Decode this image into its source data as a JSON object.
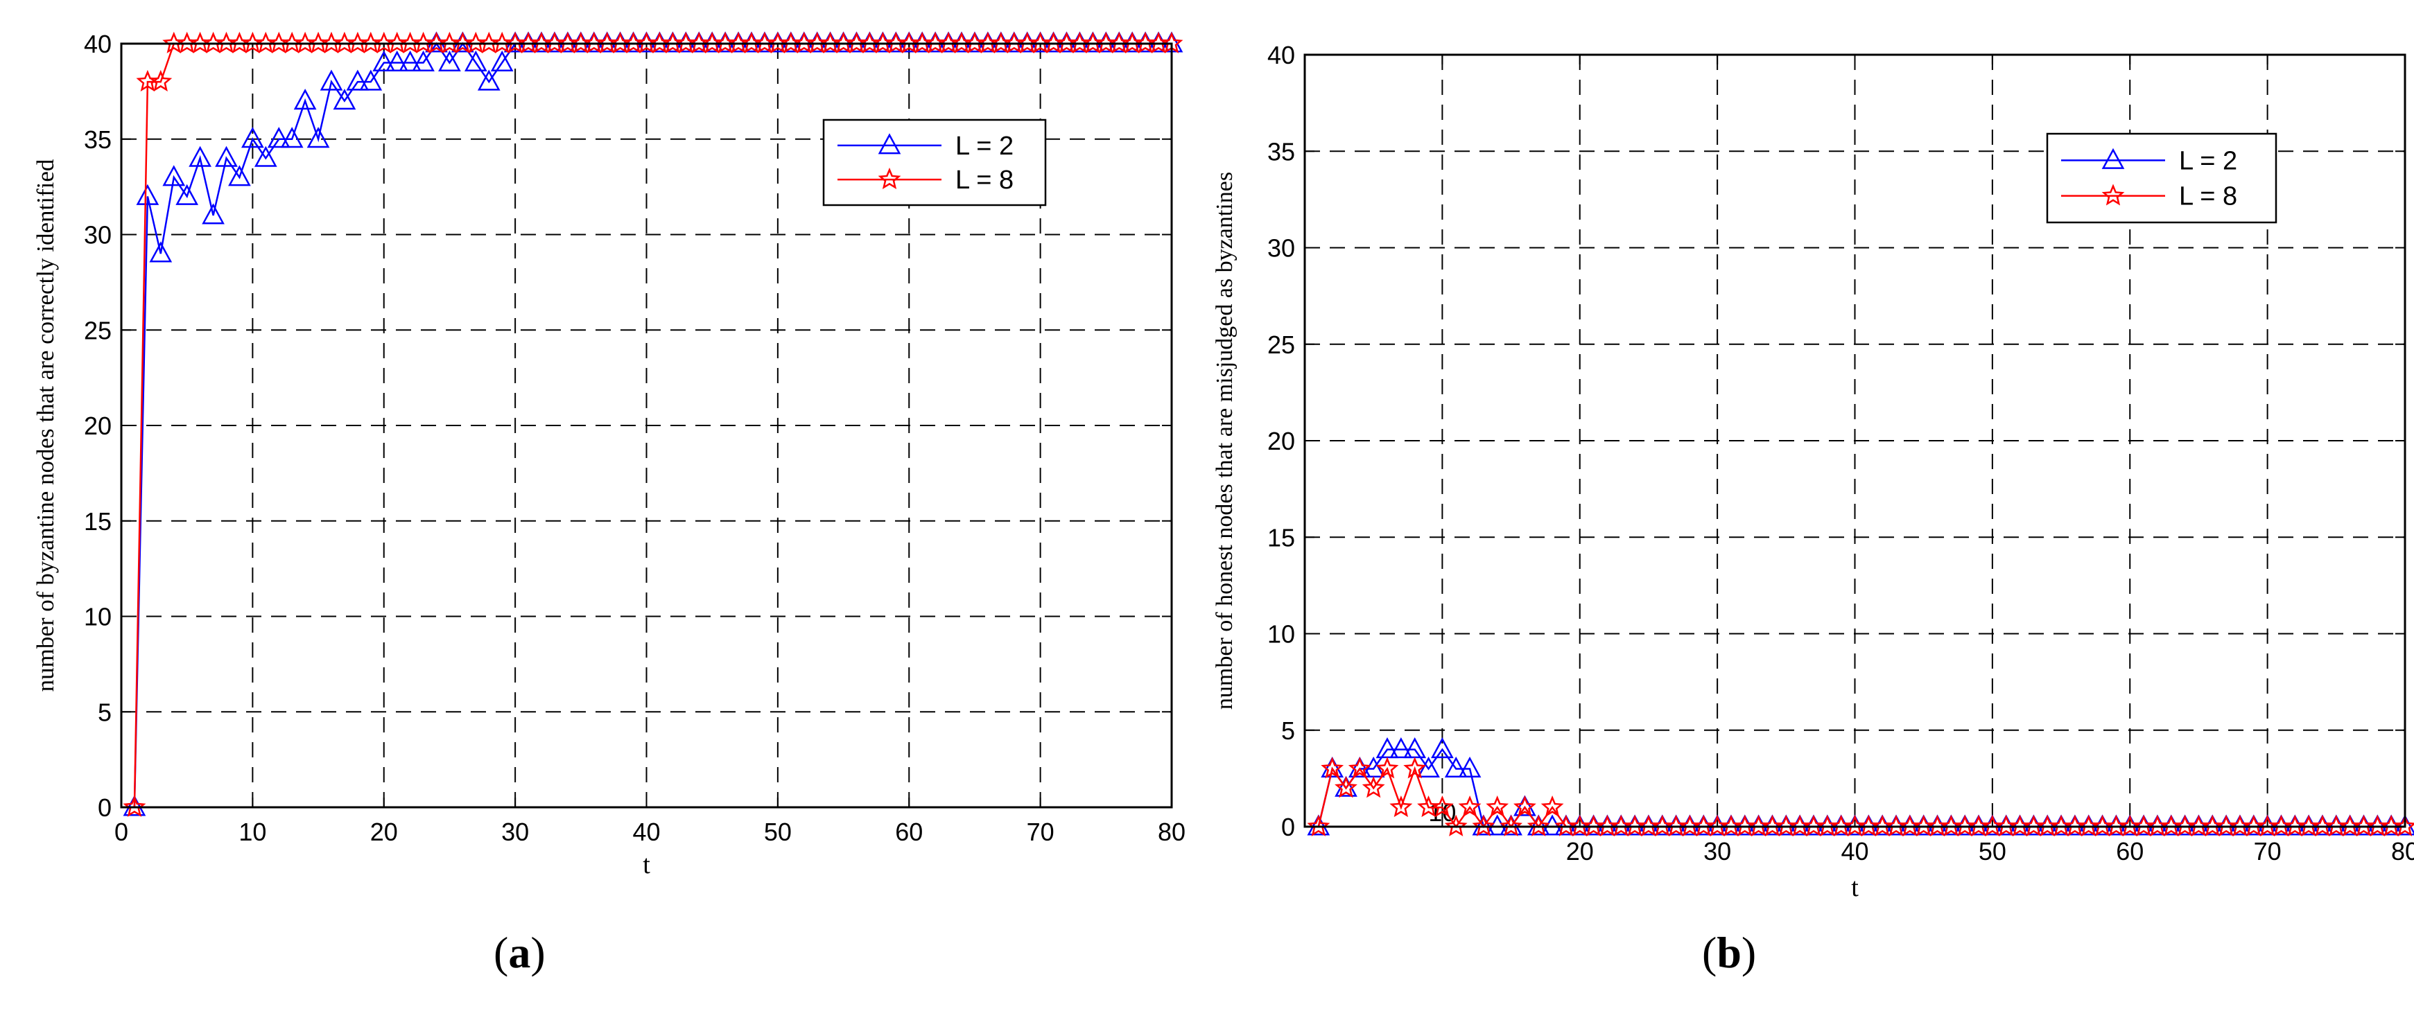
{
  "chart_data": [
    {
      "type": "line",
      "panel_label": "a",
      "xlabel": "t",
      "ylabel": "number of byzantine nodes that are correctly identified",
      "xlim": [
        0,
        80
      ],
      "ylim": [
        0,
        40
      ],
      "xticks": [
        0,
        10,
        20,
        30,
        40,
        50,
        60,
        70,
        80
      ],
      "yticks": [
        0,
        5,
        10,
        15,
        20,
        25,
        30,
        35,
        40
      ],
      "xtick_labels": [
        "0",
        "10",
        "20",
        "30",
        "40",
        "50",
        "60",
        "70",
        "80"
      ],
      "ytick_labels": [
        "0",
        "5",
        "10",
        "15",
        "20",
        "25",
        "30",
        "35",
        "40"
      ],
      "grid": true,
      "legend_position": "top-right",
      "series": [
        {
          "name": "L = 2",
          "color": "#0000ff",
          "marker": "triangle",
          "x": [
            1,
            2,
            3,
            4,
            5,
            6,
            7,
            8,
            9,
            10,
            11,
            12,
            13,
            14,
            15,
            16,
            17,
            18,
            19,
            20,
            21,
            22,
            23,
            24,
            25,
            26,
            27,
            28,
            29,
            30,
            31,
            32,
            33,
            34,
            35,
            36,
            37,
            38,
            39,
            40,
            41,
            42,
            43,
            44,
            45,
            46,
            47,
            48,
            49,
            50,
            51,
            52,
            53,
            54,
            55,
            56,
            57,
            58,
            59,
            60,
            61,
            62,
            63,
            64,
            65,
            66,
            67,
            68,
            69,
            70,
            71,
            72,
            73,
            74,
            75,
            76,
            77,
            78,
            79,
            80
          ],
          "values": [
            0,
            32,
            29,
            33,
            32,
            34,
            31,
            34,
            33,
            35,
            34,
            35,
            35,
            37,
            35,
            38,
            37,
            38,
            38,
            39,
            39,
            39,
            39,
            40,
            39,
            40,
            39,
            38,
            39,
            40,
            40,
            40,
            40,
            40,
            40,
            40,
            40,
            40,
            40,
            40,
            40,
            40,
            40,
            40,
            40,
            40,
            40,
            40,
            40,
            40,
            40,
            40,
            40,
            40,
            40,
            40,
            40,
            40,
            40,
            40,
            40,
            40,
            40,
            40,
            40,
            40,
            40,
            40,
            40,
            40,
            40,
            40,
            40,
            40,
            40,
            40,
            40,
            40,
            40,
            40
          ]
        },
        {
          "name": "L = 8",
          "color": "#ff0000",
          "marker": "star",
          "x": [
            1,
            2,
            3,
            4,
            5,
            6,
            7,
            8,
            9,
            10,
            11,
            12,
            13,
            14,
            15,
            16,
            17,
            18,
            19,
            20,
            21,
            22,
            23,
            24,
            25,
            26,
            27,
            28,
            29,
            30,
            31,
            32,
            33,
            34,
            35,
            36,
            37,
            38,
            39,
            40,
            41,
            42,
            43,
            44,
            45,
            46,
            47,
            48,
            49,
            50,
            51,
            52,
            53,
            54,
            55,
            56,
            57,
            58,
            59,
            60,
            61,
            62,
            63,
            64,
            65,
            66,
            67,
            68,
            69,
            70,
            71,
            72,
            73,
            74,
            75,
            76,
            77,
            78,
            79,
            80
          ],
          "values": [
            0,
            38,
            38,
            40,
            40,
            40,
            40,
            40,
            40,
            40,
            40,
            40,
            40,
            40,
            40,
            40,
            40,
            40,
            40,
            40,
            40,
            40,
            40,
            40,
            40,
            40,
            40,
            40,
            40,
            40,
            40,
            40,
            40,
            40,
            40,
            40,
            40,
            40,
            40,
            40,
            40,
            40,
            40,
            40,
            40,
            40,
            40,
            40,
            40,
            40,
            40,
            40,
            40,
            40,
            40,
            40,
            40,
            40,
            40,
            40,
            40,
            40,
            40,
            40,
            40,
            40,
            40,
            40,
            40,
            40,
            40,
            40,
            40,
            40,
            40,
            40,
            40,
            40,
            40,
            40
          ]
        }
      ]
    },
    {
      "type": "line",
      "panel_label": "b",
      "xlabel": "t",
      "ylabel": "number of honest nodes that are misjudged as byzantines",
      "xlim": [
        0,
        80
      ],
      "ylim": [
        0,
        40
      ],
      "xticks": [
        20,
        30,
        40,
        50,
        60,
        70,
        80
      ],
      "yticks": [
        0,
        5,
        10,
        15,
        20,
        25,
        30,
        35,
        40
      ],
      "xtick_labels": [
        "20",
        "30",
        "40",
        "50",
        "60",
        "70",
        "80"
      ],
      "ytick_labels": [
        "0",
        "5",
        "10",
        "15",
        "20",
        "25",
        "30",
        "35",
        "40"
      ],
      "xtick_10_label": "10",
      "grid": true,
      "legend_position": "top-right",
      "series": [
        {
          "name": "L = 2",
          "color": "#0000ff",
          "marker": "triangle",
          "x": [
            1,
            2,
            3,
            4,
            5,
            6,
            7,
            8,
            9,
            10,
            11,
            12,
            13,
            14,
            15,
            16,
            17,
            18,
            19,
            20,
            21,
            22,
            23,
            24,
            25,
            26,
            27,
            28,
            29,
            30,
            31,
            32,
            33,
            34,
            35,
            36,
            37,
            38,
            39,
            40,
            41,
            42,
            43,
            44,
            45,
            46,
            47,
            48,
            49,
            50,
            51,
            52,
            53,
            54,
            55,
            56,
            57,
            58,
            59,
            60,
            61,
            62,
            63,
            64,
            65,
            66,
            67,
            68,
            69,
            70,
            71,
            72,
            73,
            74,
            75,
            76,
            77,
            78,
            79,
            80
          ],
          "values": [
            0,
            3,
            2,
            3,
            3,
            4,
            4,
            4,
            3,
            4,
            3,
            3,
            0,
            0,
            0,
            1,
            0,
            0,
            0,
            0,
            0,
            0,
            0,
            0,
            0,
            0,
            0,
            0,
            0,
            0,
            0,
            0,
            0,
            0,
            0,
            0,
            0,
            0,
            0,
            0,
            0,
            0,
            0,
            0,
            0,
            0,
            0,
            0,
            0,
            0,
            0,
            0,
            0,
            0,
            0,
            0,
            0,
            0,
            0,
            0,
            0,
            0,
            0,
            0,
            0,
            0,
            0,
            0,
            0,
            0,
            0,
            0,
            0,
            0,
            0,
            0,
            0,
            0,
            0,
            0
          ]
        },
        {
          "name": "L = 8",
          "color": "#ff0000",
          "marker": "star",
          "x": [
            1,
            2,
            3,
            4,
            5,
            6,
            7,
            8,
            9,
            10,
            11,
            12,
            13,
            14,
            15,
            16,
            17,
            18,
            19,
            20,
            21,
            22,
            23,
            24,
            25,
            26,
            27,
            28,
            29,
            30,
            31,
            32,
            33,
            34,
            35,
            36,
            37,
            38,
            39,
            40,
            41,
            42,
            43,
            44,
            45,
            46,
            47,
            48,
            49,
            50,
            51,
            52,
            53,
            54,
            55,
            56,
            57,
            58,
            59,
            60,
            61,
            62,
            63,
            64,
            65,
            66,
            67,
            68,
            69,
            70,
            71,
            72,
            73,
            74,
            75,
            76,
            77,
            78,
            79,
            80
          ],
          "values": [
            0,
            3,
            2,
            3,
            2,
            3,
            1,
            3,
            1,
            1,
            0,
            1,
            0,
            1,
            0,
            1,
            0,
            1,
            0,
            0,
            0,
            0,
            0,
            0,
            0,
            0,
            0,
            0,
            0,
            0,
            0,
            0,
            0,
            0,
            0,
            0,
            0,
            0,
            0,
            0,
            0,
            0,
            0,
            0,
            0,
            0,
            0,
            0,
            0,
            0,
            0,
            0,
            0,
            0,
            0,
            0,
            0,
            0,
            0,
            0,
            0,
            0,
            0,
            0,
            0,
            0,
            0,
            0,
            0,
            0,
            0,
            0,
            0,
            0,
            0,
            0,
            0,
            0,
            0,
            0
          ]
        }
      ]
    }
  ]
}
